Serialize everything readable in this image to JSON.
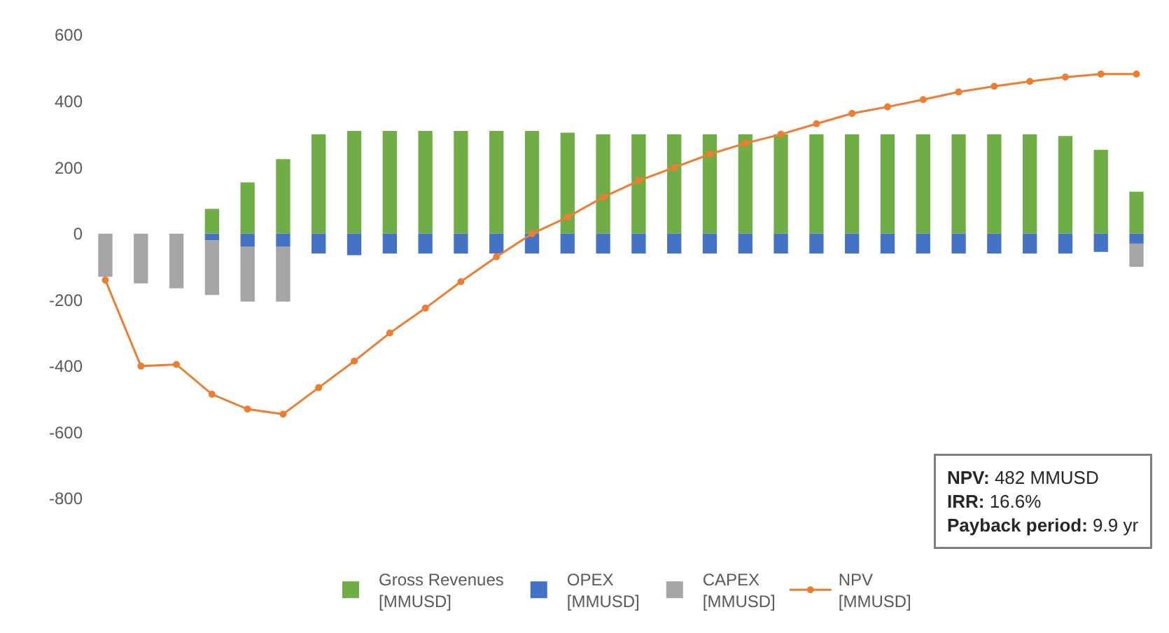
{
  "chart_data": {
    "type": "bar",
    "stacked": true,
    "categories": [
      null,
      null,
      null,
      null,
      null,
      null,
      null,
      null,
      null,
      null,
      null,
      null,
      null,
      null,
      null,
      null,
      null,
      null,
      null,
      null,
      null,
      null,
      null,
      null,
      null,
      null,
      null,
      null,
      null,
      null
    ],
    "series": [
      {
        "name": "Gross Revenues\n[MMUSD]",
        "color": "#70ad47",
        "values": [
          0,
          0,
          0,
          75,
          155,
          225,
          300,
          310,
          310,
          310,
          310,
          310,
          310,
          305,
          300,
          300,
          300,
          300,
          300,
          300,
          300,
          300,
          300,
          300,
          300,
          300,
          300,
          295,
          253,
          127
        ]
      },
      {
        "name": "OPEX\n[MMUSD]",
        "color": "#4472c4",
        "values": [
          0,
          0,
          0,
          -20,
          -40,
          -40,
          -60,
          -65,
          -60,
          -60,
          -60,
          -60,
          -60,
          -60,
          -60,
          -60,
          -60,
          -60,
          -60,
          -60,
          -60,
          -60,
          -60,
          -60,
          -60,
          -60,
          -60,
          -60,
          -55,
          -30
        ]
      },
      {
        "name": "CAPEX\n[MMUSD]",
        "color": "#a5a5a5",
        "values": [
          -130,
          -150,
          -165,
          -165,
          -165,
          -165,
          0,
          0,
          0,
          0,
          0,
          0,
          0,
          0,
          0,
          0,
          0,
          0,
          0,
          0,
          0,
          0,
          0,
          0,
          0,
          0,
          0,
          0,
          0,
          -70
        ]
      },
      {
        "name": "NPV\n[MMUSD]",
        "type": "line",
        "color": "#ed7d31",
        "marker": "circle",
        "values": [
          -140,
          -400,
          -395,
          -485,
          -530,
          -545,
          -465,
          -385,
          -300,
          -225,
          -145,
          -70,
          0,
          50,
          110,
          160,
          200,
          240,
          273,
          300,
          332,
          363,
          383,
          405,
          428,
          445,
          460,
          473,
          482,
          482
        ]
      }
    ],
    "ylim": [
      -800,
      600
    ],
    "yticks": [
      -800,
      -600,
      -400,
      -200,
      0,
      200,
      400,
      600
    ],
    "tick_labels": "y",
    "legend": "bottom",
    "annotations": [
      "NPV: 482 MMUSD",
      "IRR: 16.6%",
      "Payback period: 9.9 yr"
    ]
  }
}
